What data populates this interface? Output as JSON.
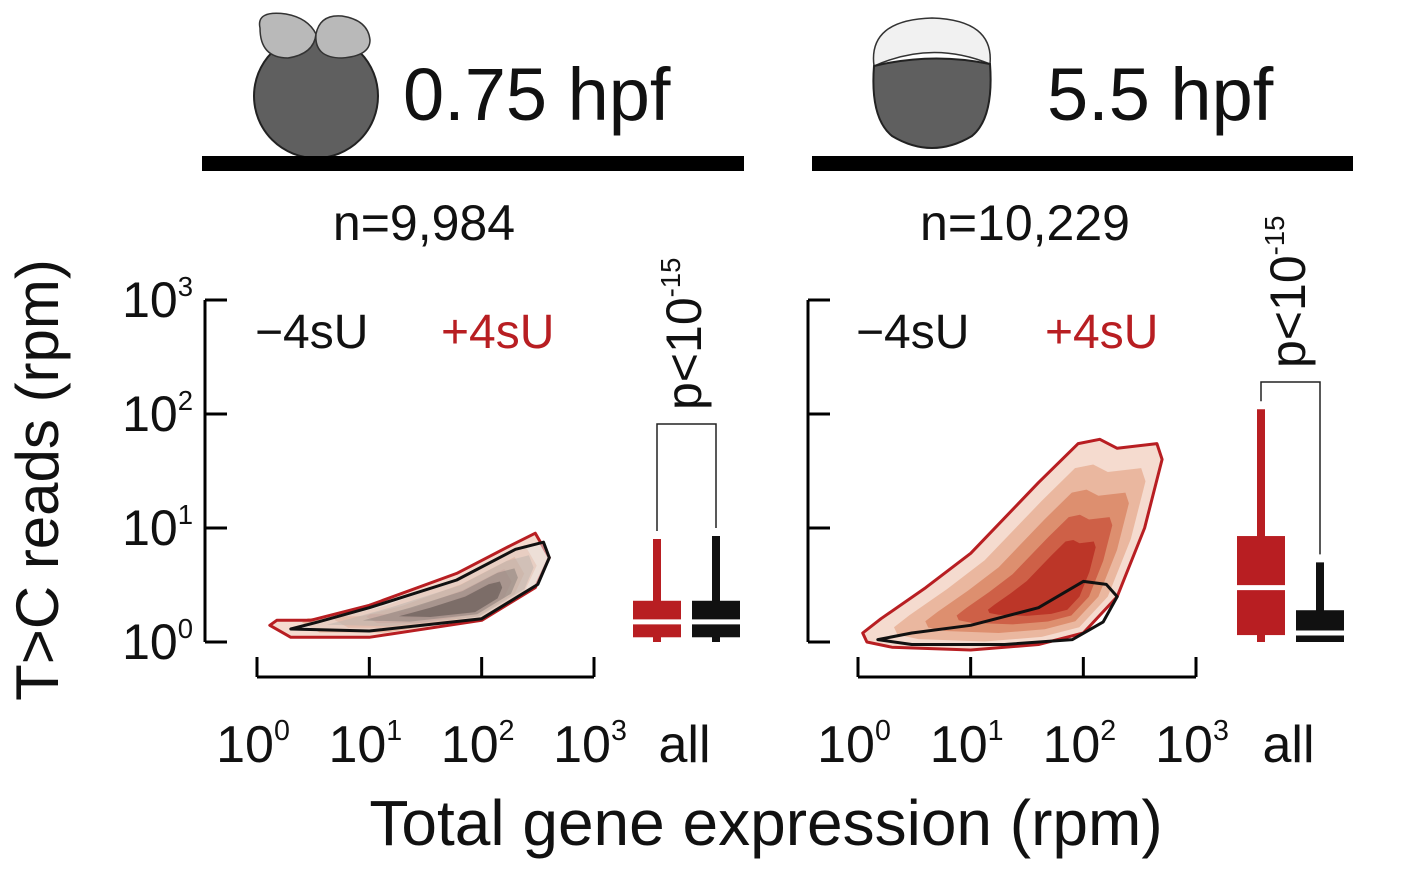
{
  "colors": {
    "red": "#b81e22",
    "black": "#111111",
    "embryo_dark": "#5f5f5f",
    "embryo_light": "#b9b9b9",
    "density_levels": [
      "#f4d9cc",
      "#e9b59c",
      "#dc8c6d",
      "#cc5e45",
      "#bb3427"
    ],
    "control_levels": [
      "#e6e2df",
      "#bdb4ae",
      "#8d817b",
      "#5a4e4a"
    ]
  },
  "y_axis_label": "T>C reads (rpm)",
  "x_axis_label": "Total gene expression (rpm)",
  "panels": [
    {
      "stage": "0.75 hpf",
      "n_label": "n=9,984",
      "legend_minus": "−4sU",
      "legend_plus": "+4sU",
      "pvalue": {
        "base": "p<10",
        "exp": "-15"
      },
      "x_ticks": [
        {
          "base": "10",
          "exp": "0"
        },
        {
          "base": "10",
          "exp": "1"
        },
        {
          "base": "10",
          "exp": "2"
        },
        {
          "base": "10",
          "exp": "3"
        }
      ],
      "y_ticks": [
        {
          "base": "10",
          "exp": "0"
        },
        {
          "base": "10",
          "exp": "1"
        },
        {
          "base": "10",
          "exp": "2"
        },
        {
          "base": "10",
          "exp": "3"
        }
      ],
      "all_label": "all"
    },
    {
      "stage": "5.5 hpf",
      "n_label": "n=10,229",
      "legend_minus": "−4sU",
      "legend_plus": "+4sU",
      "pvalue": {
        "base": "p<10",
        "exp": "-15"
      },
      "x_ticks": [
        {
          "base": "10",
          "exp": "0"
        },
        {
          "base": "10",
          "exp": "1"
        },
        {
          "base": "10",
          "exp": "2"
        },
        {
          "base": "10",
          "exp": "3"
        }
      ],
      "y_ticks": [],
      "all_label": "all"
    }
  ],
  "chart_data": [
    {
      "type": "density",
      "panel": 0,
      "xscale": "log10",
      "yscale": "log10",
      "xlim": [
        1,
        1000
      ],
      "ylim": [
        1,
        1000
      ],
      "series": [
        {
          "name": "−4sU",
          "color": "#111111",
          "outline": [
            [
              2.0,
              1.3
            ],
            [
              10,
              1.25
            ],
            [
              100,
              1.6
            ],
            [
              316,
              3.2
            ],
            [
              400,
              5.5
            ],
            [
              355,
              7.5
            ],
            [
              200,
              6.5
            ],
            [
              60,
              3.5
            ],
            [
              10,
              2.0
            ],
            [
              3.5,
              1.5
            ],
            [
              2.0,
              1.3
            ]
          ],
          "peak": [
            80,
            2.0
          ]
        },
        {
          "name": "+4sU",
          "color": "#b81e22",
          "outline": [
            [
              1.3,
              1.4
            ],
            [
              2,
              1.1
            ],
            [
              10,
              1.1
            ],
            [
              100,
              1.55
            ],
            [
              300,
              3.0
            ],
            [
              400,
              5.5
            ],
            [
              300,
              9.0
            ],
            [
              180,
              7.0
            ],
            [
              60,
              4.0
            ],
            [
              10,
              2.1
            ],
            [
              3,
              1.55
            ],
            [
              1.5,
              1.55
            ],
            [
              1.3,
              1.4
            ]
          ],
          "peak": [
            80,
            2.0
          ]
        }
      ],
      "boxplots": [
        {
          "name": "+4sU",
          "color": "#b81e22",
          "whisker_low": 1.0,
          "q1": 1.1,
          "median": 1.5,
          "q3": 2.3,
          "whisker_high": 8.0
        },
        {
          "name": "−4sU",
          "color": "#111111",
          "whisker_low": 1.0,
          "q1": 1.1,
          "median": 1.5,
          "q3": 2.3,
          "whisker_high": 8.5
        }
      ]
    },
    {
      "type": "density",
      "panel": 1,
      "xscale": "log10",
      "yscale": "log10",
      "xlim": [
        1,
        1000
      ],
      "ylim": [
        1,
        1000
      ],
      "series": [
        {
          "name": "+4sU",
          "color": "#b81e22",
          "outline": [
            [
              1.2,
              1.0
            ],
            [
              2,
              0.9
            ],
            [
              10,
              0.85
            ],
            [
              40,
              0.95
            ],
            [
              100,
              1.2
            ],
            [
              200,
              2.5
            ],
            [
              350,
              10
            ],
            [
              500,
              40
            ],
            [
              450,
              55
            ],
            [
              200,
              50
            ],
            [
              140,
              60
            ],
            [
              90,
              55
            ],
            [
              40,
              25
            ],
            [
              10,
              6
            ],
            [
              4,
              3
            ],
            [
              1.6,
              1.6
            ],
            [
              1.1,
              1.2
            ],
            [
              1.2,
              1.0
            ]
          ],
          "peak": [
            60,
            2.5
          ]
        },
        {
          "name": "−4sU",
          "color": "#111111",
          "outline": [
            [
              1.5,
              1.05
            ],
            [
              3,
              0.95
            ],
            [
              20,
              0.95
            ],
            [
              80,
              1.05
            ],
            [
              150,
              1.5
            ],
            [
              200,
              2.5
            ],
            [
              160,
              3.2
            ],
            [
              100,
              3.4
            ],
            [
              40,
              2.0
            ],
            [
              10,
              1.4
            ],
            [
              3,
              1.2
            ],
            [
              1.5,
              1.05
            ]
          ],
          "peak": [
            100,
            1.8
          ]
        }
      ],
      "boxplots": [
        {
          "name": "+4sU",
          "color": "#b81e22",
          "whisker_low": 1.0,
          "q1": 1.15,
          "median": 3.0,
          "q3": 8.5,
          "whisker_high": 110
        },
        {
          "name": "−4sU",
          "color": "#111111",
          "whisker_low": 1.0,
          "q1": 1.0,
          "median": 1.2,
          "q3": 1.9,
          "whisker_high": 5.0
        }
      ]
    }
  ]
}
